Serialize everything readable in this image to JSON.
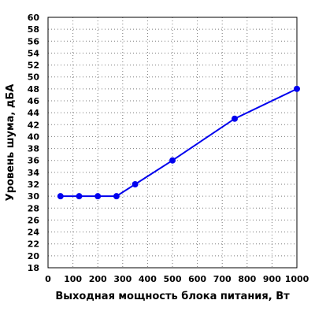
{
  "chart_data": {
    "type": "line",
    "xlabel": "Выходная мощность блока питания, Вт",
    "ylabel": "Уровень шума, дБА",
    "xlim": [
      0,
      1000
    ],
    "ylim": [
      18,
      60
    ],
    "xticks": [
      0,
      100,
      200,
      300,
      400,
      500,
      600,
      700,
      800,
      900,
      1000
    ],
    "yticks": [
      18,
      20,
      22,
      24,
      26,
      28,
      30,
      32,
      34,
      36,
      38,
      40,
      42,
      44,
      46,
      48,
      50,
      52,
      54,
      56,
      58,
      60
    ],
    "grid": true,
    "line_color": "#0000ee",
    "series": [
      {
        "x": [
          50,
          125,
          200,
          275,
          350,
          500,
          750,
          1000
        ],
        "y": [
          30,
          30,
          30,
          30,
          32,
          36,
          43,
          48
        ]
      }
    ]
  }
}
